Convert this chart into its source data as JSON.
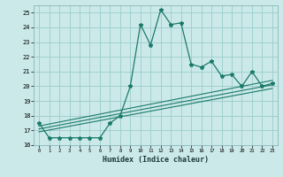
{
  "xlabel": "Humidex (Indice chaleur)",
  "background_color": "#cce9e9",
  "grid_color": "#99cccc",
  "line_color": "#1a7a6a",
  "xlim": [
    -0.5,
    23.5
  ],
  "ylim": [
    16,
    25.5
  ],
  "yticks": [
    16,
    17,
    18,
    19,
    20,
    21,
    22,
    23,
    24,
    25
  ],
  "xticks": [
    0,
    1,
    2,
    3,
    4,
    5,
    6,
    7,
    8,
    9,
    10,
    11,
    12,
    13,
    14,
    15,
    16,
    17,
    18,
    19,
    20,
    21,
    22,
    23
  ],
  "main_line_x": [
    0,
    1,
    2,
    3,
    4,
    5,
    6,
    7,
    8,
    9,
    10,
    11,
    12,
    13,
    14,
    15,
    16,
    17,
    18,
    19,
    20,
    21,
    22,
    23
  ],
  "main_line_y": [
    17.5,
    16.5,
    16.5,
    16.5,
    16.5,
    16.5,
    16.5,
    17.5,
    18.0,
    20.0,
    24.2,
    22.8,
    25.2,
    24.2,
    24.3,
    21.5,
    21.3,
    21.7,
    20.7,
    20.8,
    20.0,
    21.0,
    20.0,
    20.2
  ],
  "trend_line1_x": [
    0,
    23
  ],
  "trend_line1_y": [
    17.1,
    20.1
  ],
  "trend_line2_x": [
    0,
    23
  ],
  "trend_line2_y": [
    17.3,
    20.4
  ],
  "trend_line3_x": [
    0,
    23
  ],
  "trend_line3_y": [
    16.9,
    19.85
  ]
}
